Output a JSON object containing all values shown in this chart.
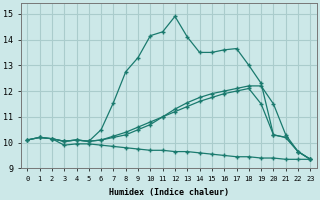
{
  "xlabel": "Humidex (Indice chaleur)",
  "bg_color": "#cce8e8",
  "grid_color": "#aacccc",
  "line_color": "#1a7a6e",
  "xlim": [
    -0.5,
    23.5
  ],
  "ylim": [
    9.0,
    15.4
  ],
  "yticks": [
    9,
    10,
    11,
    12,
    13,
    14,
    15
  ],
  "xticks": [
    0,
    1,
    2,
    3,
    4,
    5,
    6,
    7,
    8,
    9,
    10,
    11,
    12,
    13,
    14,
    15,
    16,
    17,
    18,
    19,
    20,
    21,
    22,
    23
  ],
  "lines": [
    {
      "x": [
        0,
        1,
        2,
        3,
        4,
        5,
        6,
        7,
        8,
        9,
        10,
        11,
        12,
        13,
        14,
        15,
        16,
        17,
        18,
        19,
        20,
        21,
        22,
        23
      ],
      "y": [
        10.1,
        10.2,
        10.15,
        10.05,
        10.1,
        10.05,
        10.5,
        11.55,
        12.75,
        13.3,
        14.15,
        14.3,
        14.9,
        14.1,
        13.5,
        13.5,
        13.6,
        13.65,
        13.0,
        12.3,
        10.3,
        10.2,
        9.65,
        9.35
      ]
    },
    {
      "x": [
        0,
        1,
        2,
        3,
        4,
        5,
        6,
        7,
        8,
        9,
        10,
        11,
        12,
        13,
        14,
        15,
        16,
        17,
        18,
        19,
        20,
        21,
        22,
        23
      ],
      "y": [
        10.1,
        10.2,
        10.15,
        10.05,
        10.1,
        10.05,
        10.1,
        10.2,
        10.3,
        10.5,
        10.7,
        11.0,
        11.3,
        11.55,
        11.75,
        11.9,
        12.0,
        12.1,
        12.2,
        12.2,
        11.5,
        10.3,
        9.65,
        9.35
      ]
    },
    {
      "x": [
        0,
        1,
        2,
        3,
        4,
        5,
        6,
        7,
        8,
        9,
        10,
        11,
        12,
        13,
        14,
        15,
        16,
        17,
        18,
        19,
        20,
        21,
        22,
        23
      ],
      "y": [
        10.1,
        10.2,
        10.15,
        9.9,
        9.95,
        9.95,
        9.9,
        9.85,
        9.8,
        9.75,
        9.7,
        9.7,
        9.65,
        9.65,
        9.6,
        9.55,
        9.5,
        9.45,
        9.45,
        9.4,
        9.4,
        9.35,
        9.35,
        9.35
      ]
    },
    {
      "x": [
        2,
        3,
        4,
        5,
        6,
        7,
        8,
        9,
        10,
        11,
        12,
        13,
        14,
        15,
        16,
        17,
        18,
        19,
        20,
        21,
        22,
        23
      ],
      "y": [
        10.15,
        10.05,
        10.1,
        10.05,
        10.1,
        10.25,
        10.4,
        10.6,
        10.8,
        11.0,
        11.2,
        11.4,
        11.6,
        11.75,
        11.9,
        12.0,
        12.1,
        11.5,
        10.3,
        10.2,
        9.65,
        9.35
      ]
    }
  ]
}
